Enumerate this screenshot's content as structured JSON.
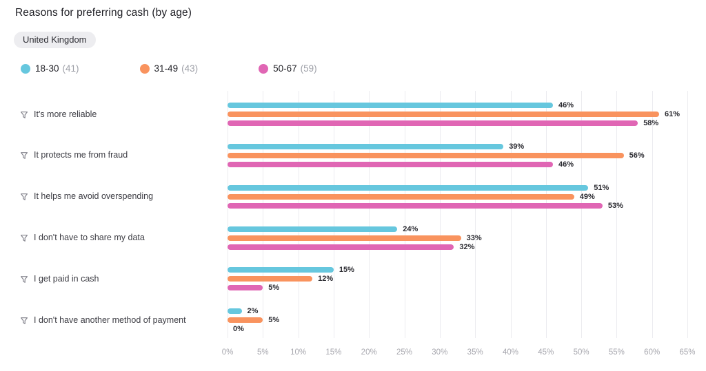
{
  "header": {
    "title": "Reasons for preferring cash (by age)",
    "region_tag": "United Kingdom"
  },
  "icons": {
    "category_row_icon": "filter-icon",
    "legend_marker_icon": "circle-dot-icon"
  },
  "colors": {
    "series_teal": "#66C7DE",
    "series_orange": "#F9935E",
    "series_pink": "#E066B4",
    "tag_background": "#EDEDF0",
    "gridline": "#EBEBEF",
    "axis_text": "#A7A7AE"
  },
  "chart_data": {
    "type": "bar",
    "orientation": "horizontal",
    "title": "Reasons for preferring cash (by age)",
    "subtitle": "United Kingdom",
    "legend_position": "top",
    "grid": "vertical",
    "value_suffix": "%",
    "xlim": [
      0,
      65
    ],
    "xticks": [
      0,
      5,
      10,
      15,
      20,
      25,
      30,
      35,
      40,
      45,
      50,
      55,
      60,
      65
    ],
    "xtick_suffix": "%",
    "categories": [
      "It's more reliable",
      "It protects me from fraud",
      "It helps me avoid overspending",
      "I don't have to share my data",
      "I get paid in cash",
      "I don't have another method of payment"
    ],
    "series": [
      {
        "name": "18-30",
        "count": "(41)",
        "color": "#66C7DE",
        "values": [
          46,
          39,
          51,
          24,
          15,
          2
        ]
      },
      {
        "name": "31-49",
        "count": "(43)",
        "color": "#F9935E",
        "values": [
          61,
          56,
          49,
          33,
          12,
          5
        ]
      },
      {
        "name": "50-67",
        "count": "(59)",
        "color": "#E066B4",
        "values": [
          58,
          46,
          53,
          32,
          5,
          0
        ]
      }
    ]
  }
}
